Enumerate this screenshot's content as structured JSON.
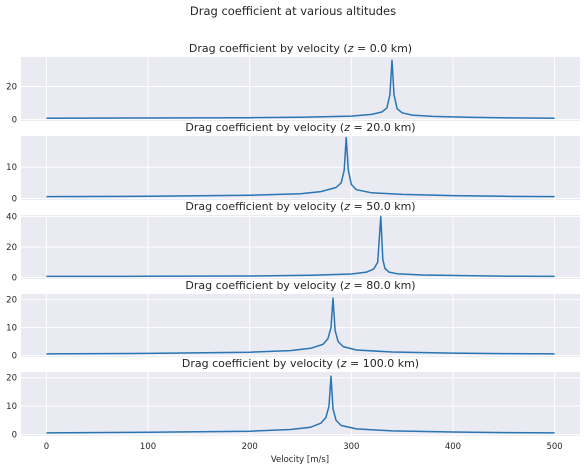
{
  "figure": {
    "suptitle": "Drag coefficient at various altitudes",
    "xlabel": "Velocity [m/s]"
  },
  "style": {
    "panel_bg": "#eaeaf2",
    "grid": "#ffffff",
    "line": "#2a75b3",
    "text": "#262626"
  },
  "chart_data": [
    {
      "type": "line",
      "title": "Drag coefficient by velocity ($z = 0.0$ km)",
      "title_pre": "Drag coefficient by velocity (",
      "z_value": "0.0",
      "title_post": " km)",
      "xlim": [
        -25,
        525
      ],
      "ylim": [
        -1,
        38
      ],
      "yticks": [
        0,
        20
      ],
      "xticks": [
        0,
        100,
        200,
        300,
        400,
        500
      ],
      "x": [
        0,
        100,
        200,
        250,
        300,
        320,
        330,
        335,
        338,
        340,
        342,
        345,
        350,
        360,
        380,
        420,
        460,
        500
      ],
      "y": [
        0.7,
        0.8,
        1.0,
        1.3,
        2.0,
        3.0,
        4.5,
        7.0,
        15.0,
        36.0,
        15.0,
        6.5,
        4.0,
        2.6,
        1.8,
        1.2,
        0.9,
        0.7
      ]
    },
    {
      "type": "line",
      "title": "Drag coefficient by velocity ($z = 20.0$ km)",
      "title_pre": "Drag coefficient by velocity (",
      "z_value": "20.0",
      "title_post": " km)",
      "xlim": [
        -25,
        525
      ],
      "ylim": [
        -0.5,
        20
      ],
      "yticks": [
        0,
        10
      ],
      "xticks": [
        0,
        100,
        200,
        300,
        400,
        500
      ],
      "x": [
        0,
        100,
        200,
        250,
        270,
        285,
        290,
        293,
        295,
        297,
        300,
        305,
        320,
        350,
        400,
        450,
        500
      ],
      "y": [
        0.6,
        0.7,
        1.0,
        1.5,
        2.2,
        3.5,
        5.0,
        9.0,
        19.5,
        9.0,
        4.5,
        2.8,
        1.8,
        1.3,
        0.9,
        0.7,
        0.6
      ]
    },
    {
      "type": "line",
      "title": "Drag coefficient by velocity ($z = 50.0$ km)",
      "title_pre": "Drag coefficient by velocity (",
      "z_value": "50.0",
      "title_post": " km)",
      "xlim": [
        -25,
        525
      ],
      "ylim": [
        -1,
        41
      ],
      "yticks": [
        0,
        20,
        40
      ],
      "xticks": [
        0,
        100,
        200,
        300,
        400,
        500
      ],
      "x": [
        0,
        100,
        200,
        260,
        300,
        315,
        322,
        326,
        329,
        331,
        333,
        337,
        345,
        370,
        420,
        460,
        500
      ],
      "y": [
        0.7,
        0.8,
        1.0,
        1.4,
        2.3,
        3.5,
        5.5,
        10.0,
        40.0,
        12.0,
        6.0,
        3.5,
        2.5,
        1.6,
        1.1,
        0.8,
        0.7
      ]
    },
    {
      "type": "line",
      "title": "Drag coefficient by velocity ($z = 80.0$ km)",
      "title_pre": "Drag coefficient by velocity (",
      "z_value": "80.0",
      "title_post": " km)",
      "xlim": [
        -25,
        525
      ],
      "ylim": [
        -0.5,
        22
      ],
      "yticks": [
        0,
        10,
        20
      ],
      "xticks": [
        0,
        100,
        200,
        300,
        400,
        500
      ],
      "x": [
        0,
        100,
        200,
        240,
        260,
        272,
        277,
        280,
        282,
        284,
        287,
        292,
        305,
        340,
        400,
        450,
        500
      ],
      "y": [
        0.6,
        0.8,
        1.2,
        1.8,
        2.6,
        4.0,
        6.0,
        10.0,
        20.5,
        9.0,
        5.0,
        3.2,
        2.0,
        1.3,
        0.9,
        0.7,
        0.6
      ]
    },
    {
      "type": "line",
      "title": "Drag coefficient by velocity ($z = 100.0$ km)",
      "title_pre": "Drag coefficient by velocity (",
      "z_value": "100.0",
      "title_post": " km)",
      "xlim": [
        -25,
        525
      ],
      "ylim": [
        -0.5,
        22
      ],
      "yticks": [
        0,
        10,
        20
      ],
      "xticks": [
        0,
        100,
        200,
        300,
        400,
        500
      ],
      "x": [
        0,
        100,
        200,
        240,
        260,
        270,
        275,
        278,
        280,
        282,
        285,
        290,
        305,
        340,
        400,
        450,
        500
      ],
      "y": [
        0.6,
        0.8,
        1.2,
        1.8,
        2.6,
        4.0,
        6.0,
        10.0,
        20.5,
        9.0,
        5.0,
        3.2,
        2.0,
        1.3,
        0.9,
        0.7,
        0.6
      ]
    }
  ]
}
